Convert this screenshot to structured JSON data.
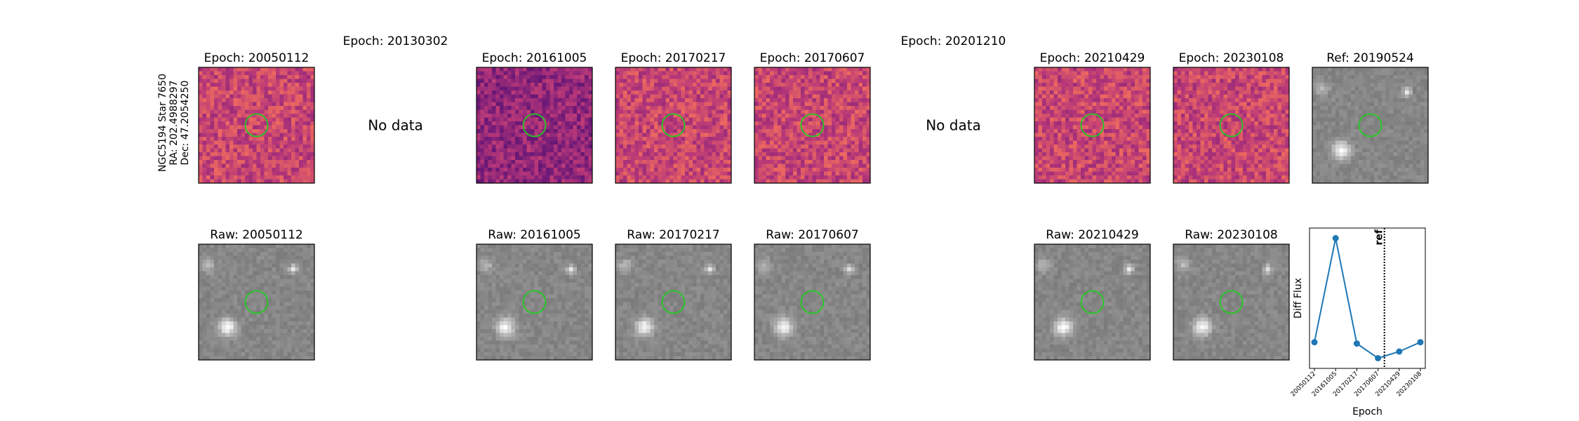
{
  "meta": {
    "target": "NGC5194 Star 7650",
    "ra": "RA: 202.4988297",
    "dec": "Dec: 47.2054250"
  },
  "top_row": [
    {
      "title": "Epoch: 20050112",
      "kind": "diff",
      "data": true
    },
    {
      "title": "Epoch: 20130302",
      "kind": "diff",
      "data": false,
      "no_data_text": "No data"
    },
    {
      "title": "Epoch: 20161005",
      "kind": "diff",
      "data": true
    },
    {
      "title": "Epoch: 20170217",
      "kind": "diff",
      "data": true
    },
    {
      "title": "Epoch: 20170607",
      "kind": "diff",
      "data": true
    },
    {
      "title": "Epoch: 20201210",
      "kind": "diff",
      "data": false,
      "no_data_text": "No data"
    },
    {
      "title": "Epoch: 20210429",
      "kind": "diff",
      "data": true
    },
    {
      "title": "Epoch: 20230108",
      "kind": "diff",
      "data": true
    },
    {
      "title": "Ref: 20190524",
      "kind": "raw",
      "data": true
    }
  ],
  "bottom_row": [
    {
      "title": "Raw: 20050112",
      "col": 0
    },
    {
      "title": "Raw: 20161005",
      "col": 2
    },
    {
      "title": "Raw: 20170217",
      "col": 3
    },
    {
      "title": "Raw: 20170607",
      "col": 4
    },
    {
      "title": "Raw: 20210429",
      "col": 6
    },
    {
      "title": "Raw: 20230108",
      "col": 7
    }
  ],
  "colors": {
    "line": "#1f77b4",
    "marker_circle": "#22cc22",
    "diff_dark": "#3b0f70",
    "diff_mid": "#b73779",
    "diff_bright": "#fb8761"
  },
  "chart_data": {
    "type": "line",
    "xlabel": "Epoch",
    "ylabel": "Diff Flux",
    "categories": [
      "20050112",
      "20161005",
      "20170217",
      "20170607",
      "20210429",
      "20230108"
    ],
    "series": [
      {
        "values": [
          0.22,
          1.0,
          0.21,
          0.1,
          0.15,
          0.22
        ]
      }
    ],
    "ref_label": "ref",
    "ref_position": "between 20170607 and 20210429",
    "grid": false
  }
}
